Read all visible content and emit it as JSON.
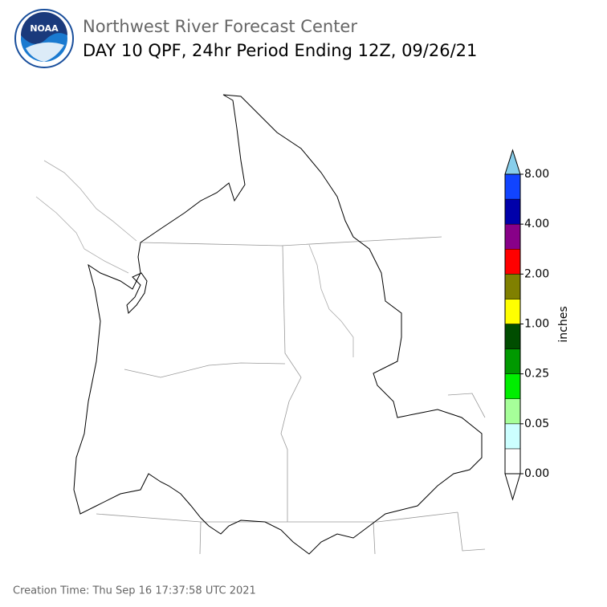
{
  "header": {
    "logo_text": "NOAA",
    "title": "Northwest River Forecast Center",
    "subtitle": "DAY 10 QPF, 24hr Period Ending 12Z, 09/26/21"
  },
  "legend": {
    "label": "inches",
    "ticks": [
      "0.00",
      "0.05",
      "0.25",
      "1.00",
      "2.00",
      "4.00",
      "8.00"
    ],
    "colors": [
      "#ffffff",
      "#ccffff",
      "#a6ff99",
      "#00ee00",
      "#009900",
      "#004d00",
      "#ffff00",
      "#808000",
      "#ff0000",
      "#880088",
      "#0000aa",
      "#1144ff"
    ],
    "under_color": "#ffffff",
    "over_color": "#87ceeb"
  },
  "footer": {
    "creation_time": "Creation Time: Thu Sep 16 17:37:58 UTC 2021"
  }
}
